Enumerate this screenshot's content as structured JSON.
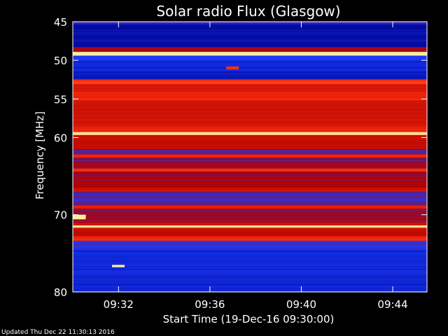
{
  "chart_data": {
    "type": "heatmap",
    "title": "Solar radio Flux (Glasgow)",
    "xlabel": "Start Time (19-Dec-16 09:30:00)",
    "ylabel": "Frequency [MHz]",
    "x_ticks_minutes": [
      2,
      6,
      10,
      14
    ],
    "x_tick_labels": [
      "09:32",
      "09:36",
      "09:40",
      "09:44"
    ],
    "xlim_minutes": [
      0,
      15.5
    ],
    "y_ticks": [
      45,
      50,
      55,
      60,
      70,
      80
    ],
    "y_tick_labels": [
      "45",
      "50",
      "55",
      "60",
      "70",
      "80"
    ],
    "ylim": [
      45,
      80
    ],
    "colors": {
      "low": "#00008a",
      "mid_blue": "#1a3cff",
      "mid": "#b00000",
      "high": "#ff3010",
      "peak": "#fff0a0"
    },
    "bands_mhz": [
      {
        "from": 45.0,
        "to": 45.3,
        "level": 0.35
      },
      {
        "from": 45.3,
        "to": 48.3,
        "level": 0.08
      },
      {
        "from": 48.3,
        "to": 48.9,
        "level": 0.45
      },
      {
        "from": 48.9,
        "to": 49.4,
        "level": 1.0
      },
      {
        "from": 49.4,
        "to": 50.0,
        "level": 0.3
      },
      {
        "from": 50.0,
        "to": 51.5,
        "level": 0.18
      },
      {
        "from": 51.5,
        "to": 52.5,
        "level": 0.14
      },
      {
        "from": 52.5,
        "to": 53.1,
        "level": 0.8
      },
      {
        "from": 53.1,
        "to": 54.0,
        "level": 0.62
      },
      {
        "from": 54.0,
        "to": 55.2,
        "level": 0.72
      },
      {
        "from": 55.2,
        "to": 58.5,
        "level": 0.6
      },
      {
        "from": 58.5,
        "to": 59.3,
        "level": 0.68
      },
      {
        "from": 59.3,
        "to": 59.7,
        "level": 0.97
      },
      {
        "from": 59.7,
        "to": 61.5,
        "level": 0.55
      },
      {
        "from": 61.5,
        "to": 62.2,
        "level": 0.4
      },
      {
        "from": 62.2,
        "to": 62.6,
        "level": 0.72
      },
      {
        "from": 62.6,
        "to": 64.0,
        "level": 0.42
      },
      {
        "from": 64.0,
        "to": 64.4,
        "level": 0.75
      },
      {
        "from": 64.4,
        "to": 66.5,
        "level": 0.45
      },
      {
        "from": 66.5,
        "to": 67.0,
        "level": 0.6
      },
      {
        "from": 67.0,
        "to": 68.8,
        "level": 0.35
      },
      {
        "from": 68.8,
        "to": 69.2,
        "level": 0.68
      },
      {
        "from": 69.2,
        "to": 71.0,
        "level": 0.42
      },
      {
        "from": 71.0,
        "to": 71.4,
        "level": 0.6
      },
      {
        "from": 71.4,
        "to": 71.7,
        "level": 1.0
      },
      {
        "from": 71.7,
        "to": 72.8,
        "level": 0.55
      },
      {
        "from": 72.8,
        "to": 73.4,
        "level": 0.75
      },
      {
        "from": 73.4,
        "to": 74.5,
        "level": 0.32
      },
      {
        "from": 74.5,
        "to": 78.0,
        "level": 0.2
      },
      {
        "from": 78.0,
        "to": 80.0,
        "level": 0.18
      }
    ],
    "bursts": [
      {
        "t": 1.9,
        "f_from": 76.5,
        "f_to": 76.8,
        "level": 1.0
      },
      {
        "t": 0.2,
        "f_from": 70.0,
        "f_to": 70.6,
        "level": 1.0
      },
      {
        "t": 6.9,
        "f_from": 50.8,
        "f_to": 51.2,
        "level": 0.8
      }
    ]
  },
  "footer": "Updated Thu Dec 22 11:30:13 2016"
}
